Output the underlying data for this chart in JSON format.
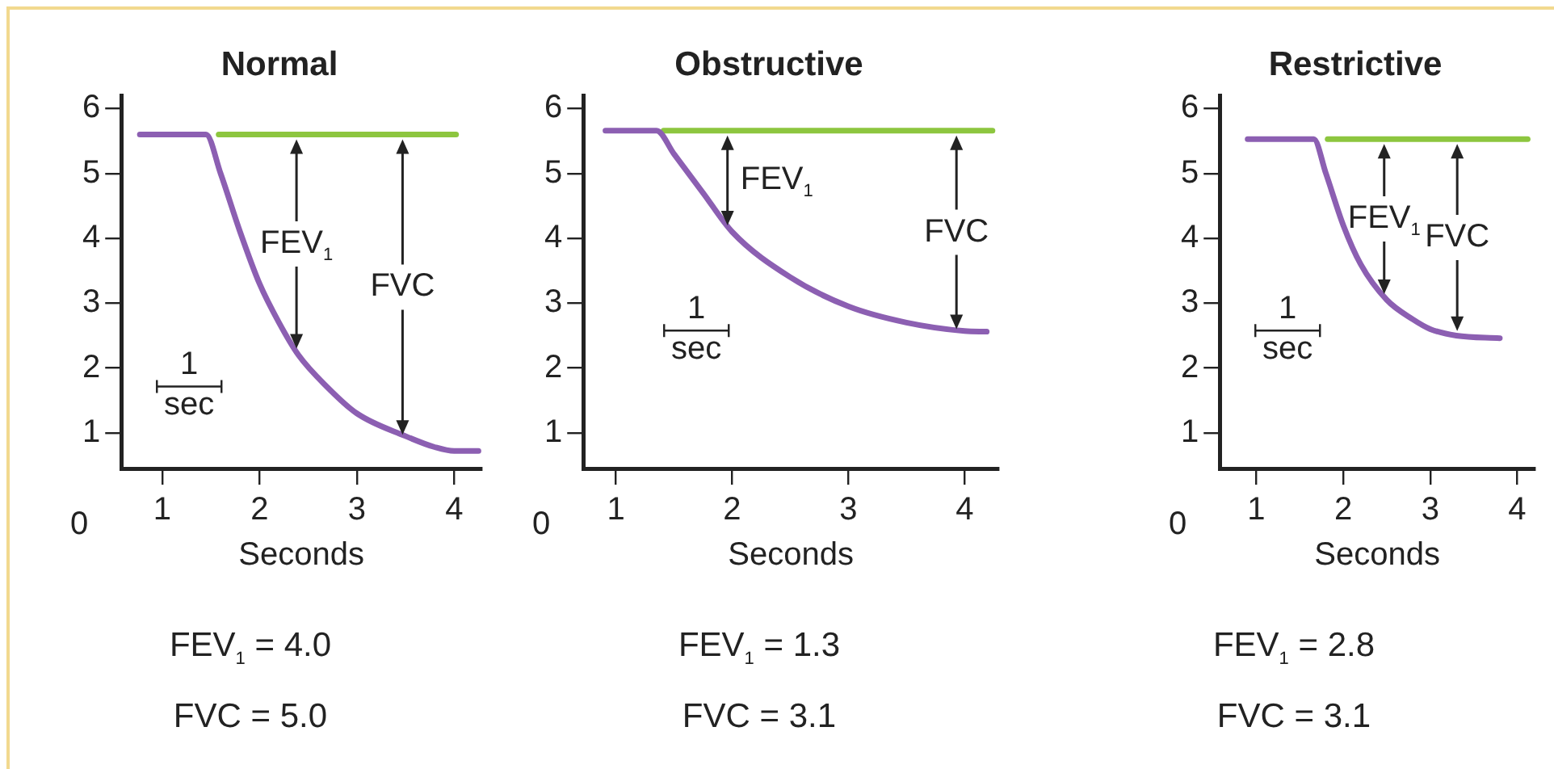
{
  "chart_data": [
    {
      "type": "line",
      "title": "Normal",
      "xlabel": "Seconds",
      "xlim": [
        0.58,
        4.28
      ],
      "xticks": [
        1,
        2,
        3,
        4
      ],
      "ylim": [
        0.45,
        6.2
      ],
      "yticks": [
        1,
        2,
        3,
        4,
        5,
        6
      ],
      "marker": "none",
      "line_style": "solid",
      "legend": false,
      "grid": false,
      "series": [
        {
          "color": "#8c5fb2",
          "x": [
            0.77,
            1.45,
            1.6,
            1.8,
            2.0,
            2.2,
            2.4,
            2.7,
            3.0,
            3.5,
            3.8,
            4.0,
            4.25
          ],
          "values": [
            5.6,
            5.6,
            5.0,
            4.1,
            3.3,
            2.7,
            2.2,
            1.7,
            1.3,
            0.95,
            0.78,
            0.72,
            0.72
          ]
        },
        {
          "color": "#8dc63f",
          "x": [
            1.58,
            4.02
          ],
          "values": [
            5.6,
            5.6
          ]
        }
      ],
      "annotations": [
        "0",
        "1 sec",
        "FEV$_{1}$ = 4.0",
        "FVC = 5.0",
        {
          "text": "FEV$_{1}$",
          "x": 2.38,
          "y": 2.3
        },
        {
          "text": "FVC",
          "x": 3.47,
          "y": 0.97
        }
      ]
    },
    {
      "type": "line",
      "title": "Obstructive",
      "xlabel": "Seconds",
      "xlim": [
        0.72,
        4.29
      ],
      "xticks": [
        1,
        2,
        3,
        4
      ],
      "ylim": [
        0.45,
        6.2
      ],
      "yticks": [
        1,
        2,
        3,
        4,
        5,
        6
      ],
      "marker": "none",
      "line_style": "solid",
      "legend": false,
      "grid": false,
      "series": [
        {
          "color": "#8c5fb2",
          "x": [
            0.91,
            1.35,
            1.5,
            1.75,
            2.0,
            2.5,
            3.0,
            3.5,
            4.0,
            4.19
          ],
          "values": [
            5.66,
            5.66,
            5.3,
            4.7,
            4.1,
            3.4,
            2.95,
            2.7,
            2.57,
            2.56
          ]
        },
        {
          "color": "#8dc63f",
          "x": [
            1.41,
            4.24
          ],
          "values": [
            5.66,
            5.66
          ]
        }
      ],
      "annotations": [
        "0",
        "1 sec",
        "FEV$_{1}$ = 1.3",
        "FVC = 3.1",
        {
          "text": "FEV$_{1}$",
          "x": 1.96,
          "y": 4.2
        },
        {
          "text": "FVC",
          "x": 3.93,
          "y": 2.6
        }
      ]
    },
    {
      "type": "line",
      "title": "Restrictive",
      "xlabel": "Seconds",
      "xlim": [
        0.58,
        4.2
      ],
      "xticks": [
        1,
        2,
        3,
        4
      ],
      "ylim": [
        0.45,
        6.2
      ],
      "yticks": [
        1,
        2,
        3,
        4,
        5,
        6
      ],
      "marker": "none",
      "line_style": "solid",
      "legend": false,
      "grid": false,
      "series": [
        {
          "color": "#8c5fb2",
          "x": [
            0.9,
            1.66,
            1.8,
            2.0,
            2.2,
            2.5,
            2.8,
            3.0,
            3.3,
            3.8
          ],
          "values": [
            5.53,
            5.53,
            5.0,
            4.2,
            3.6,
            3.05,
            2.75,
            2.6,
            2.5,
            2.46
          ]
        },
        {
          "color": "#8dc63f",
          "x": [
            1.82,
            4.12
          ],
          "values": [
            5.53,
            5.53
          ]
        }
      ],
      "annotations": [
        "0",
        "1 sec",
        "FEV$_{1}$ = 2.8",
        "FVC = 3.1",
        {
          "text": "FEV$_{1}$",
          "x": 2.47,
          "y": 3.14
        },
        {
          "text": "FVC",
          "x": 3.31,
          "y": 2.57
        }
      ]
    }
  ]
}
